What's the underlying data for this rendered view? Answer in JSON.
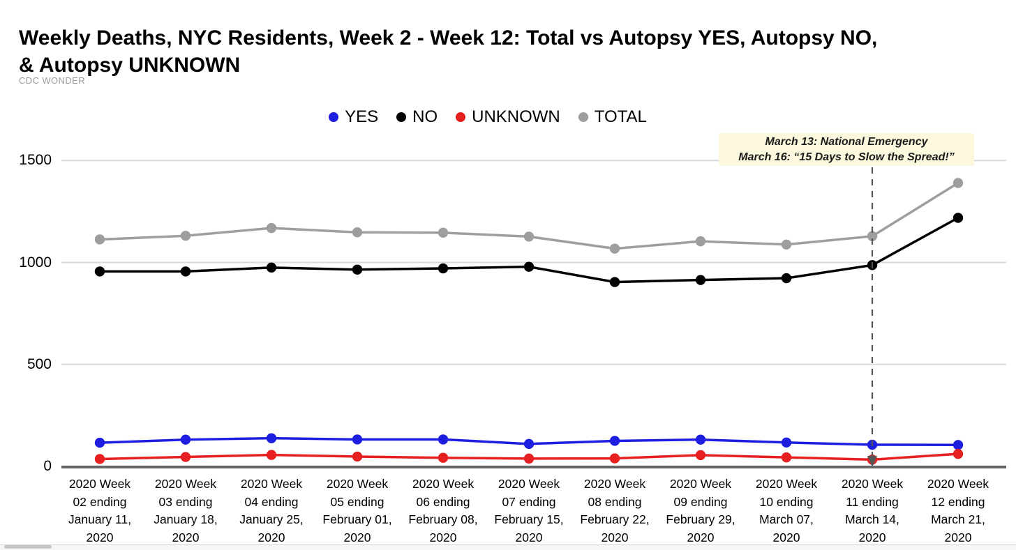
{
  "header": {
    "title": "Weekly Deaths, NYC Residents, Week 2 - Week 12: Total vs Autopsy YES, Autopsy NO,\n& Autopsy UNKNOWN",
    "source": "CDC WONDER"
  },
  "chart_data": {
    "type": "line",
    "title": "Weekly Deaths, NYC Residents, Week 2 - Week 12: Total vs Autopsy YES, Autopsy NO, & Autopsy UNKNOWN",
    "subtitle": "CDC WONDER",
    "categories": [
      "2020 Week\n02 ending\nJanuary 11,\n2020",
      "2020 Week\n03 ending\nJanuary 18,\n2020",
      "2020 Week\n04 ending\nJanuary 25,\n2020",
      "2020 Week\n05 ending\nFebruary 01,\n2020",
      "2020 Week\n06 ending\nFebruary 08,\n2020",
      "2020 Week\n07 ending\nFebruary 15,\n2020",
      "2020 Week\n08 ending\nFebruary 22,\n2020",
      "2020 Week\n09 ending\nFebruary 29,\n2020",
      "2020 Week\n10 ending\nMarch 07,\n2020",
      "2020 Week\n11 ending\nMarch 14,\n2020",
      "2020 Week\n12 ending\nMarch 21,\n2020"
    ],
    "series": [
      {
        "name": "YES",
        "color": "#1e1ee0",
        "values": [
          116,
          131,
          138,
          132,
          132,
          110,
          125,
          131,
          117,
          106,
          105
        ]
      },
      {
        "name": "NO",
        "color": "#000000",
        "values": [
          956,
          956,
          975,
          965,
          971,
          979,
          904,
          914,
          923,
          987,
          1219
        ]
      },
      {
        "name": "UNKNOWN",
        "color": "#e62020",
        "values": [
          36,
          46,
          56,
          48,
          42,
          38,
          39,
          55,
          44,
          33,
          61
        ]
      },
      {
        "name": "TOTAL",
        "color": "#9e9e9e",
        "values": [
          1113,
          1131,
          1169,
          1148,
          1146,
          1127,
          1068,
          1104,
          1088,
          1129,
          1390
        ]
      }
    ],
    "ylim": [
      0,
      1500
    ],
    "yticks": [
      1500,
      1000,
      500,
      0
    ],
    "grid": "horizontal",
    "grid_color": "#dadada",
    "axis_color": "#666666",
    "legend_position": "top-center",
    "annotation": {
      "line1": "March 13: National Emergency",
      "line2": "March 16: “15 Days to Slow the Spread!”",
      "background": "#fbf8dd",
      "target_category_index": 9,
      "marker": "dashed-vertical-line-with-down-arrow"
    }
  }
}
